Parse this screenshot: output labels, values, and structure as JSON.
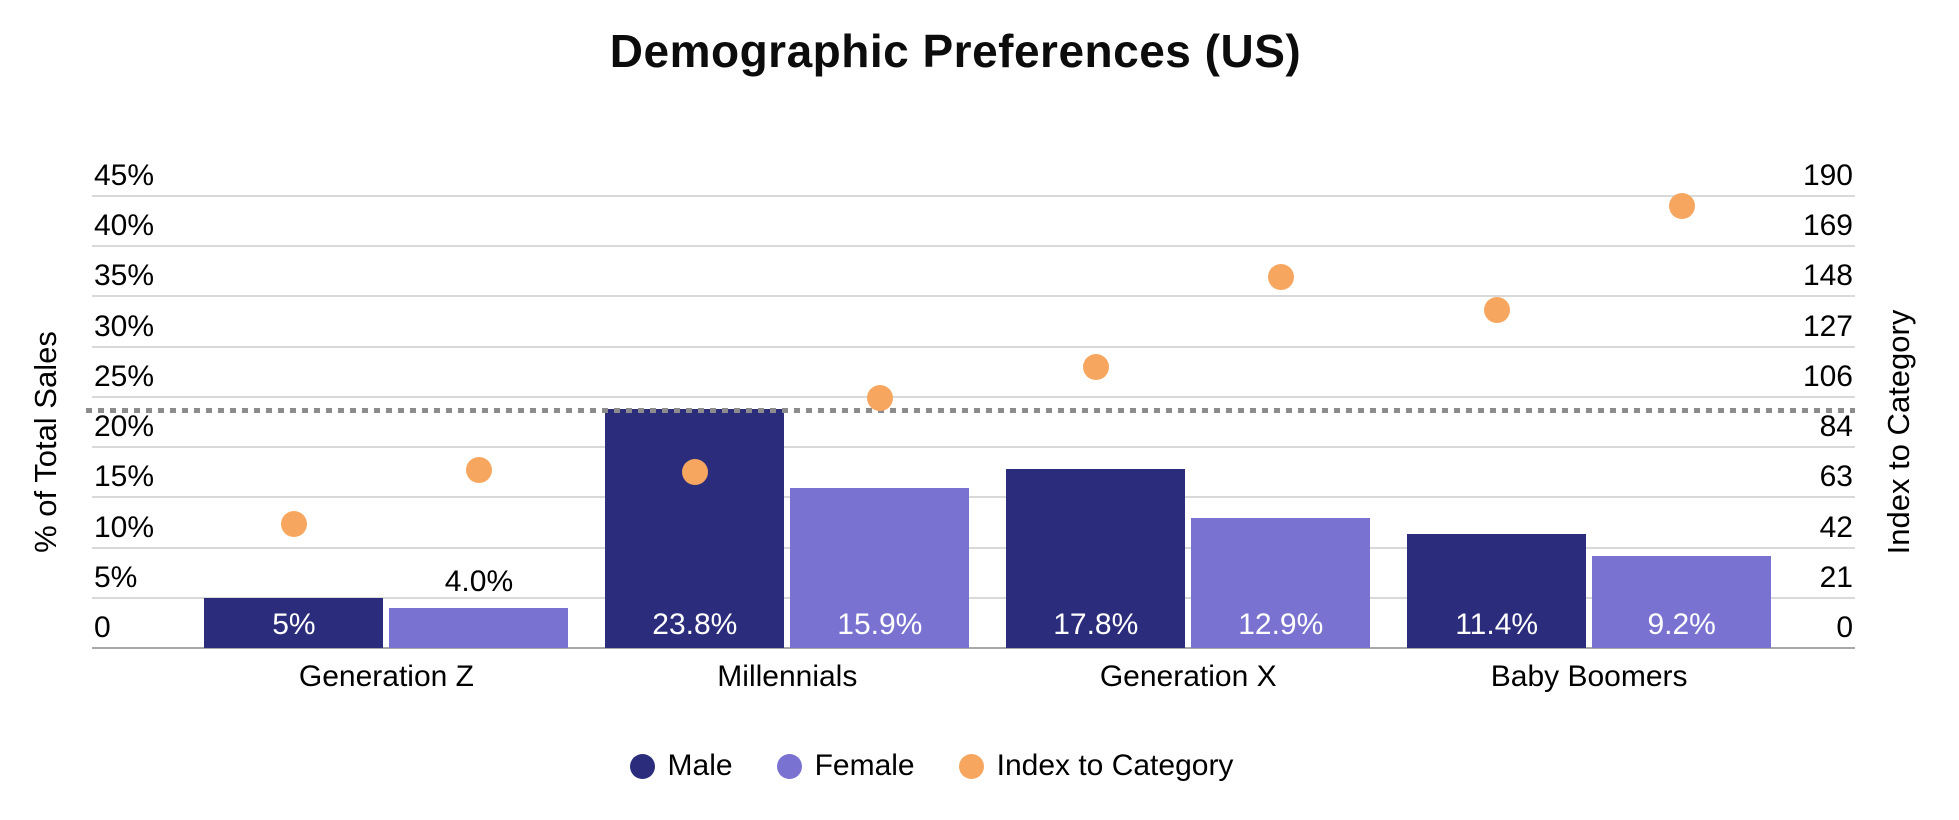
{
  "title": "Demographic Preferences (US)",
  "legend": {
    "items": [
      {
        "label": "Male",
        "color": "#2b2d7c"
      },
      {
        "label": "Female",
        "color": "#7a72d1"
      },
      {
        "label": "Index to Category",
        "color": "#f7a65f"
      }
    ]
  },
  "chart_data": {
    "type": "bar",
    "subtype": "grouped-bar-with-scatter-overlay-dual-axis",
    "title": "Demographic Preferences (US)",
    "categories": [
      "Generation Z",
      "Millennials",
      "Generation X",
      "Baby Boomers"
    ],
    "series": [
      {
        "name": "Male",
        "type": "bar",
        "axis": "left",
        "color": "#2b2d7c",
        "values": [
          5.0,
          23.8,
          17.8,
          11.4
        ],
        "data_labels": [
          "5%",
          "23.8%",
          "17.8%",
          "11.4%"
        ],
        "label_positions": [
          "inside",
          "inside",
          "inside",
          "inside"
        ]
      },
      {
        "name": "Female",
        "type": "bar",
        "axis": "left",
        "color": "#7a72d1",
        "values": [
          4.0,
          15.9,
          12.9,
          9.2
        ],
        "data_labels": [
          "4.0%",
          "15.9%",
          "12.9%",
          "9.2%"
        ],
        "label_positions": [
          "above",
          "inside",
          "inside",
          "inside"
        ]
      },
      {
        "name": "Index to Category",
        "type": "scatter",
        "axis": "right",
        "color": "#f7a65f",
        "values_per_bar": [
          [
            52,
            75
          ],
          [
            74,
            105
          ],
          [
            118,
            156
          ],
          [
            142,
            186
          ]
        ]
      }
    ],
    "reference_line": {
      "axis": "right",
      "value": 100,
      "style": "dotted",
      "color": "#8c8c8c"
    },
    "left_axis": {
      "label": "% of Total Sales",
      "min": 0,
      "max": 45,
      "ticks": [
        "45%",
        "40%",
        "35%",
        "30%",
        "25%",
        "20%",
        "15%",
        "10%",
        "5%",
        "0"
      ]
    },
    "right_axis": {
      "label": "Index to Category",
      "min": 0,
      "max": 190,
      "ticks": [
        "190",
        "169",
        "148",
        "127",
        "106",
        "84",
        "63",
        "42",
        "21",
        "0"
      ]
    },
    "grid": true,
    "legend_position": "bottom"
  }
}
